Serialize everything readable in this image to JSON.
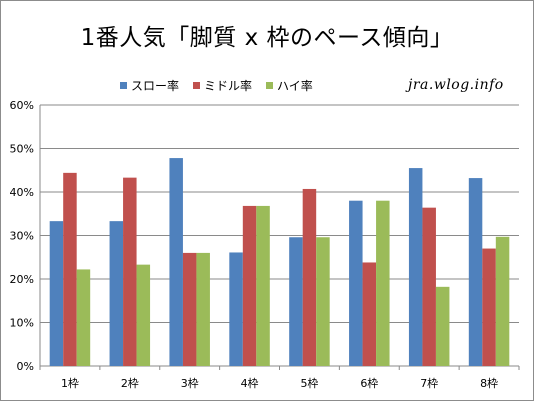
{
  "title": "1番人気「脚質 x 枠のペース傾向」",
  "watermark": "jra.wlog.info",
  "chart_data": {
    "type": "bar",
    "categories": [
      "1枠",
      "2枠",
      "3枠",
      "4枠",
      "5枠",
      "6枠",
      "7枠",
      "8枠"
    ],
    "series": [
      {
        "name": "スロー率",
        "color": "#4f81bd",
        "values": [
          33.3,
          33.3,
          47.8,
          26.1,
          29.6,
          38.0,
          45.5,
          43.2
        ]
      },
      {
        "name": "ミドル率",
        "color": "#c0504d",
        "values": [
          44.4,
          43.3,
          26.0,
          36.8,
          40.7,
          23.8,
          36.4,
          27.0
        ]
      },
      {
        "name": "ハイ率",
        "color": "#9bbb59",
        "values": [
          22.2,
          23.3,
          26.0,
          36.8,
          29.6,
          38.0,
          18.2,
          29.7
        ]
      }
    ],
    "yticks": [
      "0%",
      "10%",
      "20%",
      "30%",
      "40%",
      "50%",
      "60%"
    ],
    "ylim": [
      0,
      60
    ],
    "grid": true,
    "legend_position": "top"
  }
}
